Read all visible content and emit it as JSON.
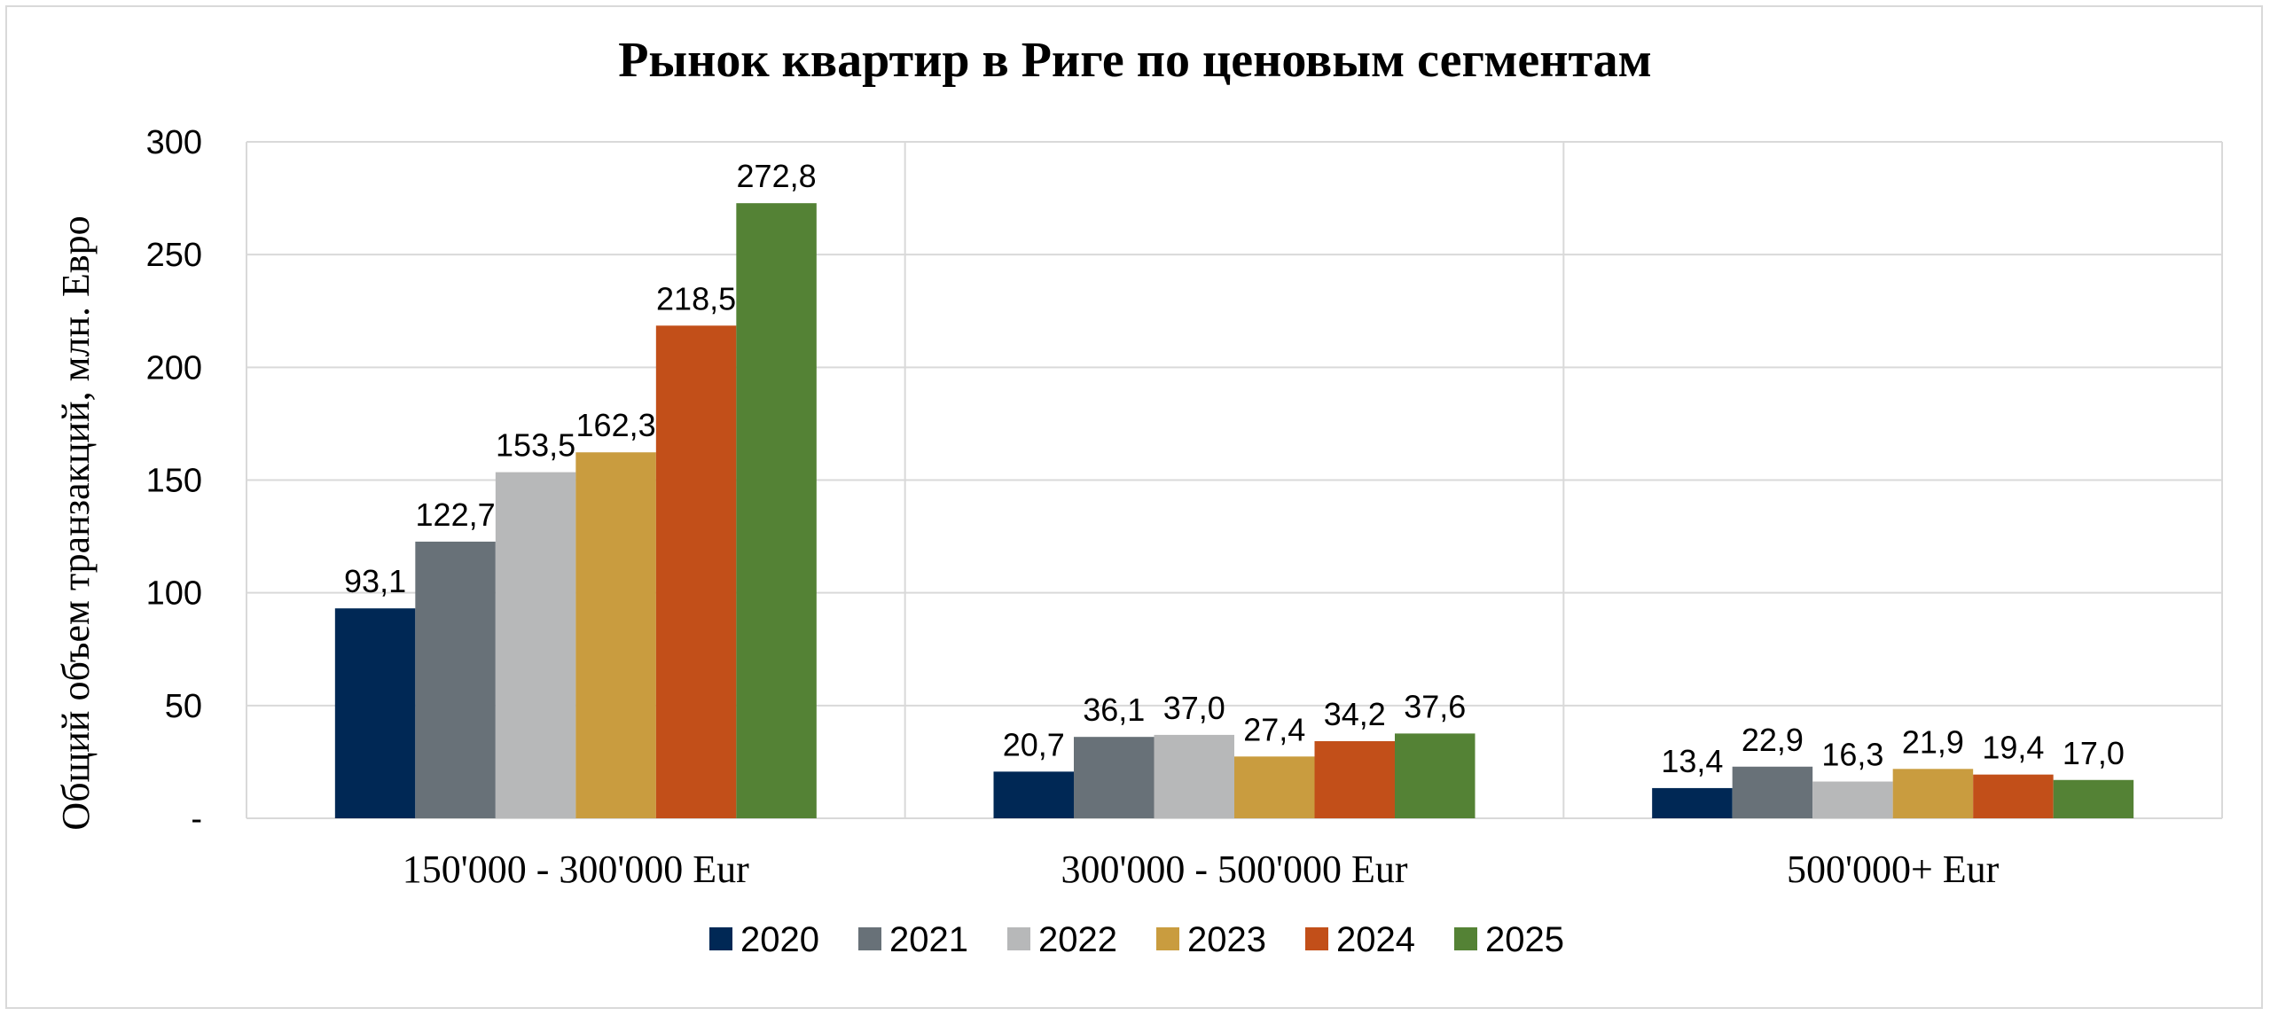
{
  "chart_data": {
    "type": "bar",
    "title": "Рынок квартир в Риге по ценовым сегментам",
    "ylabel": "Общий объем транзакций, млн. Евро",
    "xlabel": "",
    "ylim": [
      0,
      300
    ],
    "yticks": [
      "-",
      "50",
      "100",
      "150",
      "200",
      "250",
      "300"
    ],
    "ytick_values": [
      0,
      50,
      100,
      150,
      200,
      250,
      300
    ],
    "categories": [
      "150'000 - 300'000 Eur",
      "300'000 - 500'000 Eur",
      "500'000+ Eur"
    ],
    "series": [
      {
        "name": "2020",
        "color": "#002855",
        "values": [
          93.1,
          20.7,
          13.4
        ],
        "labels": [
          "93,1",
          "20,7",
          "13,4"
        ]
      },
      {
        "name": "2021",
        "color": "#687178",
        "values": [
          122.7,
          36.1,
          22.9
        ],
        "labels": [
          "122,7",
          "36,1",
          "22,9"
        ]
      },
      {
        "name": "2022",
        "color": "#b7b8b9",
        "values": [
          153.5,
          37.0,
          16.3
        ],
        "labels": [
          "153,5",
          "37,0",
          "16,3"
        ]
      },
      {
        "name": "2023",
        "color": "#c99c3f",
        "values": [
          162.3,
          27.4,
          21.9
        ],
        "labels": [
          "162,3",
          "27,4",
          "21,9"
        ]
      },
      {
        "name": "2024",
        "color": "#c24f19",
        "values": [
          218.5,
          34.2,
          19.4
        ],
        "labels": [
          "218,5",
          "34,2",
          "19,4"
        ]
      },
      {
        "name": "2025",
        "color": "#548235",
        "values": [
          272.8,
          37.6,
          17.0
        ],
        "labels": [
          "272,8",
          "37,6",
          "17,0"
        ]
      }
    ],
    "grid": true,
    "legend": "bottom-center"
  }
}
